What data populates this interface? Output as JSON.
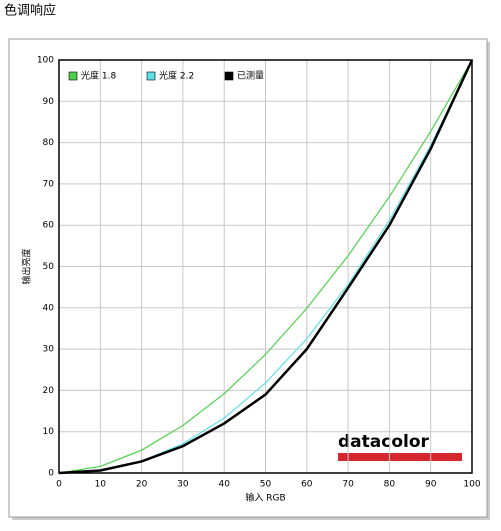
{
  "heading": "色调响应",
  "chart_data": {
    "type": "line",
    "x_label": "输入 RGB",
    "y_label": "输出亮度",
    "x": [
      0,
      10,
      20,
      30,
      40,
      50,
      60,
      70,
      80,
      90,
      100
    ],
    "series": [
      {
        "name": "光度 1.8",
        "color": "#4fd04f",
        "values": [
          0,
          1.58,
          5.52,
          11.5,
          19.2,
          28.7,
          39.9,
          52.6,
          66.9,
          82.7,
          100
        ]
      },
      {
        "name": "光度 2.2",
        "color": "#5fe0e8",
        "values": [
          0,
          0.63,
          2.9,
          7.07,
          13.3,
          21.8,
          32.5,
          45.6,
          61.2,
          79.3,
          100
        ]
      },
      {
        "name": "已测量",
        "color": "#000000",
        "values": [
          0,
          0.6,
          2.8,
          6.5,
          12,
          19,
          30,
          44.8,
          60,
          78.5,
          100
        ]
      }
    ],
    "xlim": [
      0,
      100
    ],
    "ylim": [
      0,
      100
    ],
    "xticks": [
      0,
      10,
      20,
      30,
      40,
      50,
      60,
      70,
      80,
      90,
      100
    ],
    "yticks": [
      0,
      10,
      20,
      30,
      40,
      50,
      60,
      70,
      80,
      90,
      100
    ],
    "grid": true,
    "legend": "top-left",
    "logo": "datacolor"
  }
}
